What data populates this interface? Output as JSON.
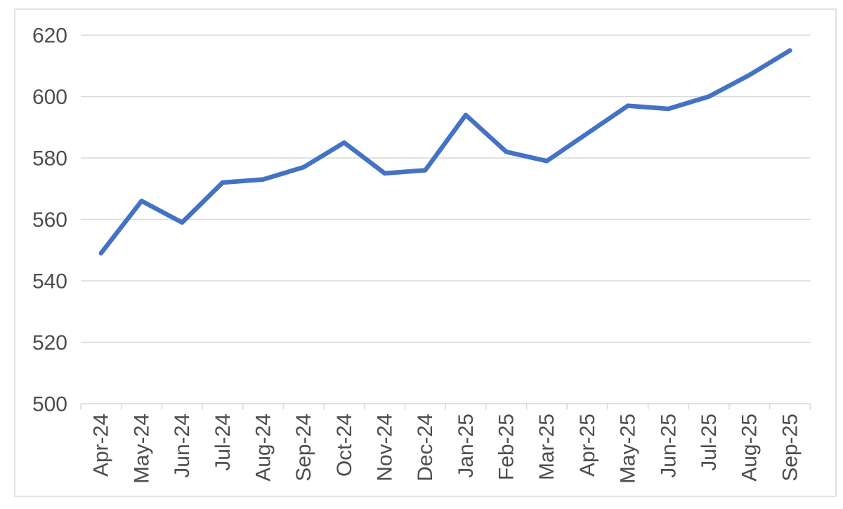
{
  "chart_data": {
    "type": "line",
    "title": "",
    "categories": [
      "Apr-24",
      "May-24",
      "Jun-24",
      "Jul-24",
      "Aug-24",
      "Sep-24",
      "Oct-24",
      "Nov-24",
      "Dec-24",
      "Jan-25",
      "Feb-25",
      "Mar-25",
      "Apr-25",
      "May-25",
      "Jun-25",
      "Jul-25",
      "Aug-25",
      "Sep-25"
    ],
    "values": [
      549,
      566,
      559,
      572,
      573,
      577,
      585,
      575,
      576,
      594,
      582,
      579,
      588,
      597,
      596,
      600,
      607,
      615
    ],
    "xlabel": "",
    "ylabel": "",
    "ylim": [
      500,
      620
    ],
    "yticks": [
      500,
      520,
      540,
      560,
      580,
      600,
      620
    ],
    "grid": true,
    "legend": false,
    "style": {
      "line_color": "#4472C4",
      "gridline_color": "#D9D9D9",
      "axis_color": "#D9D9D9",
      "label_color": "#4D4D4D",
      "frame_border_color": "#D9D9D9",
      "background_color": "#FFFFFF"
    }
  }
}
